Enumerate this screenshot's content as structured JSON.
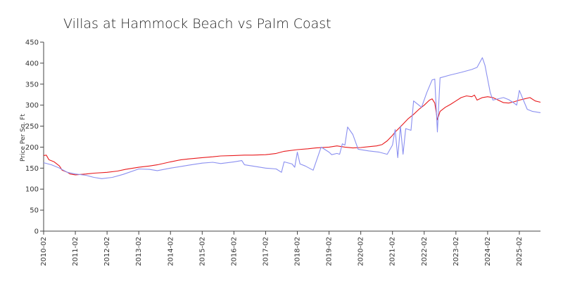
{
  "chart_data": {
    "type": "line",
    "title": "Villas at Hammock Beach vs Palm Coast",
    "xlabel": "",
    "ylabel": "Price Per Sq. Ft",
    "ylim": [
      0,
      450
    ],
    "yticks": [
      0,
      50,
      100,
      150,
      200,
      250,
      300,
      350,
      400,
      450
    ],
    "xlim": [
      "2010-02",
      "2025-10"
    ],
    "xticks": [
      "2010-02",
      "2011-02",
      "2012-02",
      "2013-02",
      "2014-02",
      "2015-02",
      "2016-02",
      "2017-02",
      "2018-02",
      "2019-02",
      "2020-02",
      "2021-02",
      "2022-02",
      "2023-02",
      "2024-02",
      "2025-02"
    ],
    "grid": false,
    "legend": "none",
    "series": [
      {
        "color": "#e8191c",
        "points": [
          [
            "2010-02",
            180
          ],
          [
            "2010-03",
            181
          ],
          [
            "2010-04",
            170
          ],
          [
            "2010-06",
            165
          ],
          [
            "2010-08",
            155
          ],
          [
            "2010-09",
            145
          ],
          [
            "2010-11",
            140
          ],
          [
            "2010-12",
            136
          ],
          [
            "2011-02",
            134
          ],
          [
            "2011-06",
            136
          ],
          [
            "2011-09",
            138
          ],
          [
            "2012-02",
            140
          ],
          [
            "2012-06",
            143
          ],
          [
            "2012-09",
            147
          ],
          [
            "2013-02",
            152
          ],
          [
            "2013-06",
            155
          ],
          [
            "2013-09",
            158
          ],
          [
            "2014-02",
            165
          ],
          [
            "2014-06",
            170
          ],
          [
            "2014-09",
            172
          ],
          [
            "2015-02",
            175
          ],
          [
            "2015-06",
            177
          ],
          [
            "2015-09",
            179
          ],
          [
            "2016-02",
            180
          ],
          [
            "2016-06",
            181
          ],
          [
            "2016-09",
            181
          ],
          [
            "2017-02",
            182
          ],
          [
            "2017-06",
            185
          ],
          [
            "2017-09",
            190
          ],
          [
            "2018-02",
            194
          ],
          [
            "2018-06",
            196
          ],
          [
            "2018-09",
            198
          ],
          [
            "2019-02",
            200
          ],
          [
            "2019-05",
            203
          ],
          [
            "2019-08",
            200
          ],
          [
            "2019-11",
            198
          ],
          [
            "2020-02",
            199
          ],
          [
            "2020-05",
            201
          ],
          [
            "2020-08",
            203
          ],
          [
            "2020-10",
            206
          ],
          [
            "2020-12",
            215
          ],
          [
            "2021-02",
            228
          ],
          [
            "2021-03",
            236
          ],
          [
            "2021-04",
            242
          ],
          [
            "2021-06",
            255
          ],
          [
            "2021-08",
            268
          ],
          [
            "2021-10",
            278
          ],
          [
            "2021-12",
            290
          ],
          [
            "2022-02",
            300
          ],
          [
            "2022-04",
            312
          ],
          [
            "2022-05",
            315
          ],
          [
            "2022-06",
            305
          ],
          [
            "2022-07",
            265
          ],
          [
            "2022-08",
            285
          ],
          [
            "2022-10",
            295
          ],
          [
            "2022-12",
            302
          ],
          [
            "2023-02",
            310
          ],
          [
            "2023-04",
            318
          ],
          [
            "2023-06",
            322
          ],
          [
            "2023-08",
            320
          ],
          [
            "2023-09",
            324
          ],
          [
            "2023-10",
            312
          ],
          [
            "2023-12",
            318
          ],
          [
            "2024-02",
            320
          ],
          [
            "2024-04",
            318
          ],
          [
            "2024-06",
            312
          ],
          [
            "2024-08",
            306
          ],
          [
            "2024-10",
            305
          ],
          [
            "2024-12",
            308
          ],
          [
            "2025-02",
            312
          ],
          [
            "2025-04",
            315
          ],
          [
            "2025-06",
            318
          ],
          [
            "2025-08",
            310
          ],
          [
            "2025-10",
            307
          ]
        ]
      },
      {
        "color": "#8a8ff0",
        "points": [
          [
            "2010-02",
            163
          ],
          [
            "2010-05",
            158
          ],
          [
            "2010-08",
            150
          ],
          [
            "2010-11",
            140
          ],
          [
            "2011-02",
            136
          ],
          [
            "2011-06",
            133
          ],
          [
            "2011-09",
            128
          ],
          [
            "2011-12",
            125
          ],
          [
            "2012-04",
            128
          ],
          [
            "2012-08",
            135
          ],
          [
            "2013-02",
            148
          ],
          [
            "2013-06",
            147
          ],
          [
            "2013-09",
            144
          ],
          [
            "2014-02",
            150
          ],
          [
            "2014-06",
            154
          ],
          [
            "2014-09",
            157
          ],
          [
            "2015-02",
            162
          ],
          [
            "2015-06",
            164
          ],
          [
            "2015-09",
            161
          ],
          [
            "2016-02",
            165
          ],
          [
            "2016-05",
            168
          ],
          [
            "2016-06",
            158
          ],
          [
            "2016-09",
            155
          ],
          [
            "2017-02",
            150
          ],
          [
            "2017-06",
            148
          ],
          [
            "2017-08",
            140
          ],
          [
            "2017-09",
            165
          ],
          [
            "2017-12",
            160
          ],
          [
            "2018-01",
            152
          ],
          [
            "2018-02",
            188
          ],
          [
            "2018-03",
            160
          ],
          [
            "2018-05",
            155
          ],
          [
            "2018-08",
            145
          ],
          [
            "2018-11",
            200
          ],
          [
            "2019-02",
            188
          ],
          [
            "2019-03",
            182
          ],
          [
            "2019-05",
            185
          ],
          [
            "2019-06",
            183
          ],
          [
            "2019-07",
            208
          ],
          [
            "2019-08",
            205
          ],
          [
            "2019-09",
            248
          ],
          [
            "2019-11",
            230
          ],
          [
            "2020-01",
            195
          ],
          [
            "2020-05",
            191
          ],
          [
            "2020-09",
            188
          ],
          [
            "2020-12",
            183
          ],
          [
            "2021-02",
            205
          ],
          [
            "2021-03",
            242
          ],
          [
            "2021-04",
            175
          ],
          [
            "2021-05",
            250
          ],
          [
            "2021-06",
            183
          ],
          [
            "2021-07",
            244
          ],
          [
            "2021-09",
            240
          ],
          [
            "2021-10",
            310
          ],
          [
            "2022-01",
            295
          ],
          [
            "2022-03",
            330
          ],
          [
            "2022-05",
            360
          ],
          [
            "2022-06",
            362
          ],
          [
            "2022-07",
            236
          ],
          [
            "2022-08",
            365
          ],
          [
            "2022-12",
            372
          ],
          [
            "2023-04",
            378
          ],
          [
            "2023-08",
            385
          ],
          [
            "2023-10",
            390
          ],
          [
            "2023-12",
            413
          ],
          [
            "2024-01",
            395
          ],
          [
            "2024-03",
            330
          ],
          [
            "2024-04",
            312
          ],
          [
            "2024-08",
            318
          ],
          [
            "2024-10",
            313
          ],
          [
            "2024-12",
            305
          ],
          [
            "2025-01",
            300
          ],
          [
            "2025-02",
            335
          ],
          [
            "2025-03",
            320
          ],
          [
            "2025-05",
            290
          ],
          [
            "2025-07",
            285
          ],
          [
            "2025-10",
            282
          ]
        ]
      }
    ]
  }
}
